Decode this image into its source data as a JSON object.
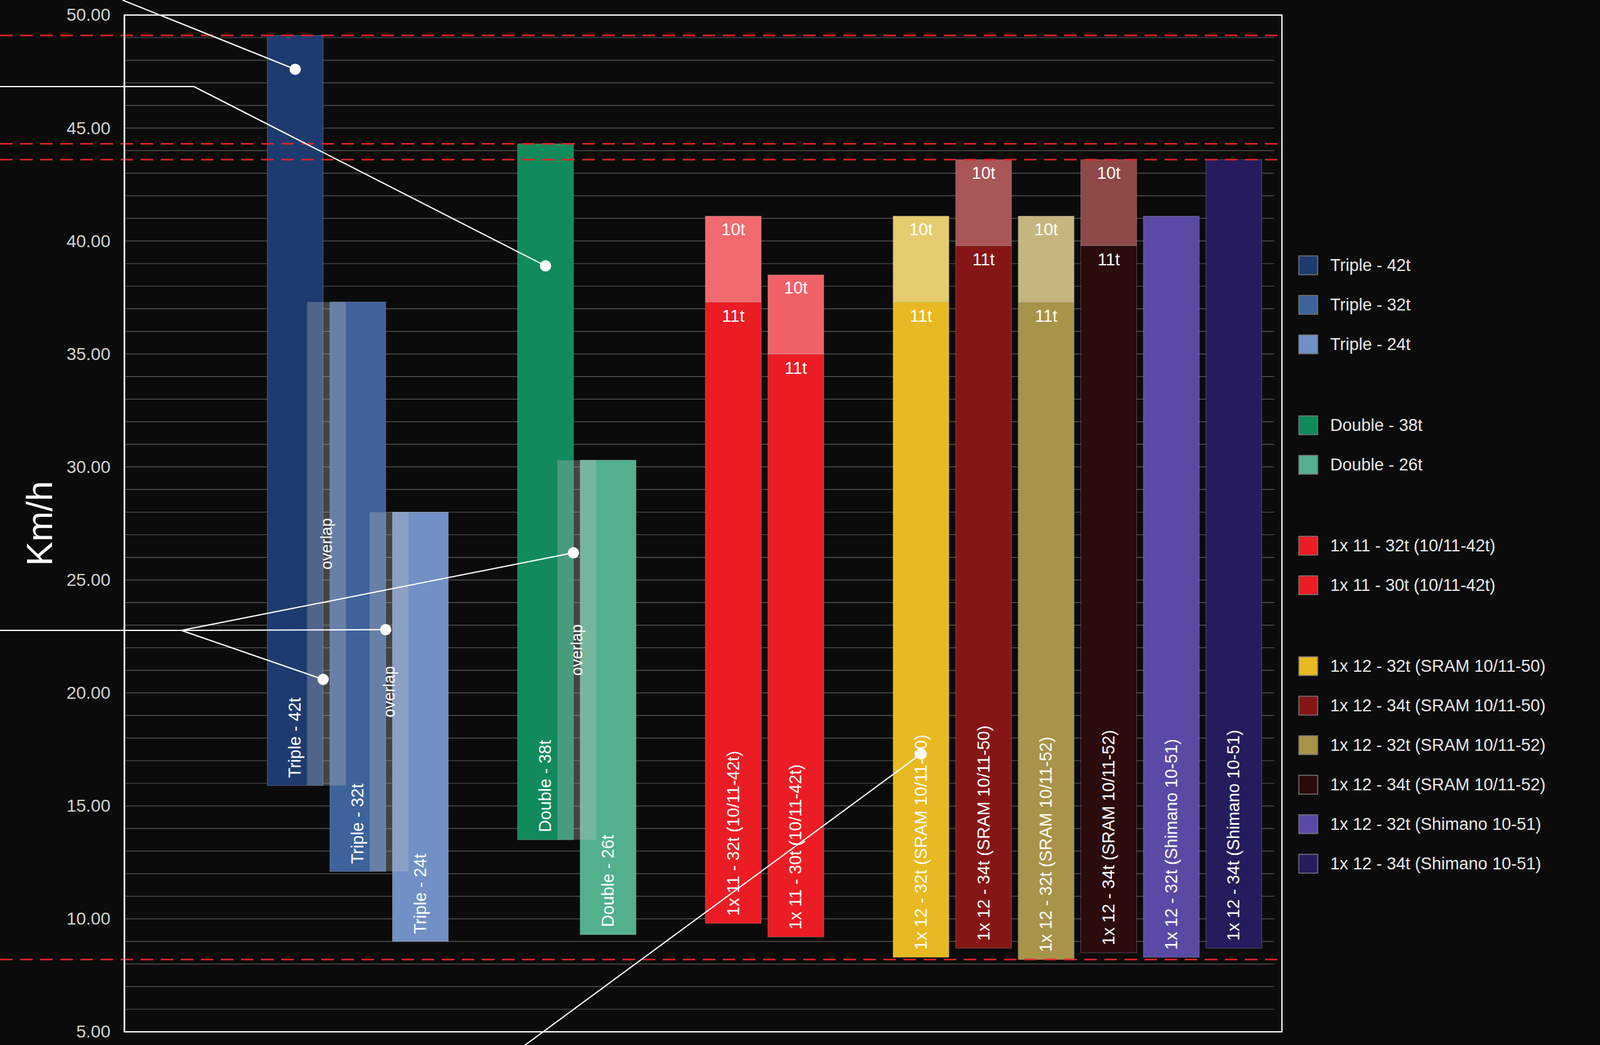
{
  "chart_data": {
    "type": "bar",
    "y_label": "Km/h",
    "categories": [
      "Triple - 42t",
      "Triple - 32t",
      "Triple - 24t",
      "Double - 38t",
      "Double - 26t",
      "1x 11 - 32t (10/11-42t)",
      "1x 11 - 30t (10/11-42t)",
      "1x 12 - 32t (SRAM 10/11-50)",
      "1x 12 - 34t (SRAM 10/11-50)",
      "1x 12 - 32t (SRAM 10/11-52)",
      "1x 12 - 34t (SRAM 10/11-52)",
      "1x 12 - 32t (Shimano 10-51)",
      "1x 12 - 34t (Shimano 10-51)"
    ],
    "low": [
      15.9,
      12.1,
      9.0,
      13.5,
      9.3,
      9.8,
      9.2,
      8.3,
      8.7,
      8.2,
      8.5,
      8.3,
      8.7
    ],
    "high": [
      49.1,
      37.3,
      28.0,
      44.3,
      30.3,
      37.3,
      35.0,
      37.3,
      39.8,
      37.3,
      39.8,
      41.1,
      43.6
    ],
    "colors": [
      "#1d3b6f",
      "#3e629b",
      "#7190c5",
      "#118a5c",
      "#52b08d",
      "#ec1c24",
      "#ec1c24",
      "#e8b922",
      "#861616",
      "#a89448",
      "#2b0b0b",
      "#5a4aa5",
      "#241c5c"
    ],
    "split_label": "11t",
    "top_segment": {
      "label": "10t",
      "values": [
        null,
        null,
        null,
        null,
        null,
        41.1,
        38.5,
        41.1,
        43.6,
        41.1,
        43.6,
        null,
        null
      ],
      "colors": [
        null,
        null,
        null,
        null,
        null,
        "#f06a6e",
        "#f06268",
        "#e5cc6e",
        "#a85656",
        "#c5b67f",
        "#8f4848",
        null,
        null
      ]
    },
    "ylim": [
      5,
      50
    ],
    "yticks": [
      {
        "value": 5,
        "label": "5.00"
      },
      {
        "value": 10,
        "label": "10.00"
      },
      {
        "value": 15,
        "label": "15.00"
      },
      {
        "value": 20,
        "label": "20.00"
      },
      {
        "value": 25,
        "label": "25.00"
      },
      {
        "value": 30,
        "label": "30.00"
      },
      {
        "value": 35,
        "label": "35.00"
      },
      {
        "value": 40,
        "label": "40.00"
      },
      {
        "value": 45,
        "label": "45.00"
      },
      {
        "value": 50,
        "label": "50.00"
      }
    ],
    "minor_yticks": [
      5,
      6,
      7,
      8,
      9,
      10,
      11,
      12,
      13,
      14,
      15,
      16,
      17,
      18,
      19,
      20,
      21,
      22,
      23,
      24,
      25,
      26,
      27,
      28,
      29,
      30,
      31,
      32,
      33,
      34,
      35,
      36,
      37,
      38,
      39,
      40,
      41,
      42,
      43,
      44,
      45,
      46,
      47,
      48,
      49,
      50
    ],
    "grid": true,
    "legend": "right",
    "reference_lines": [
      49.1,
      44.3,
      43.6,
      8.2
    ],
    "overlaps": [
      {
        "bars": [
          "Triple - 42t",
          "Triple - 32t"
        ],
        "label": "overlap"
      },
      {
        "bars": [
          "Triple - 32t",
          "Triple - 24t"
        ],
        "label": "overlap"
      },
      {
        "bars": [
          "Double - 38t",
          "Double - 26t"
        ],
        "label": "overlap"
      }
    ],
    "callouts": [
      {
        "anchor": "center",
        "points": [
          {
            "category": "Triple - 42t",
            "value": 47.6
          }
        ]
      },
      {
        "anchor": "center",
        "points": [
          {
            "category": "Double - 38t",
            "value": 38.9
          }
        ]
      },
      {
        "anchor": "right",
        "points": [
          {
            "category": "Triple - 42t",
            "value": 20.6
          },
          {
            "category": "Triple - 32t",
            "value": 22.8
          },
          {
            "category": "Double - 38t",
            "value": 26.2
          }
        ]
      },
      {
        "anchor": "center",
        "points": [
          {
            "category": "1x 12 - 32t (SRAM 10/11-50)",
            "value": 17.3
          }
        ]
      }
    ]
  }
}
